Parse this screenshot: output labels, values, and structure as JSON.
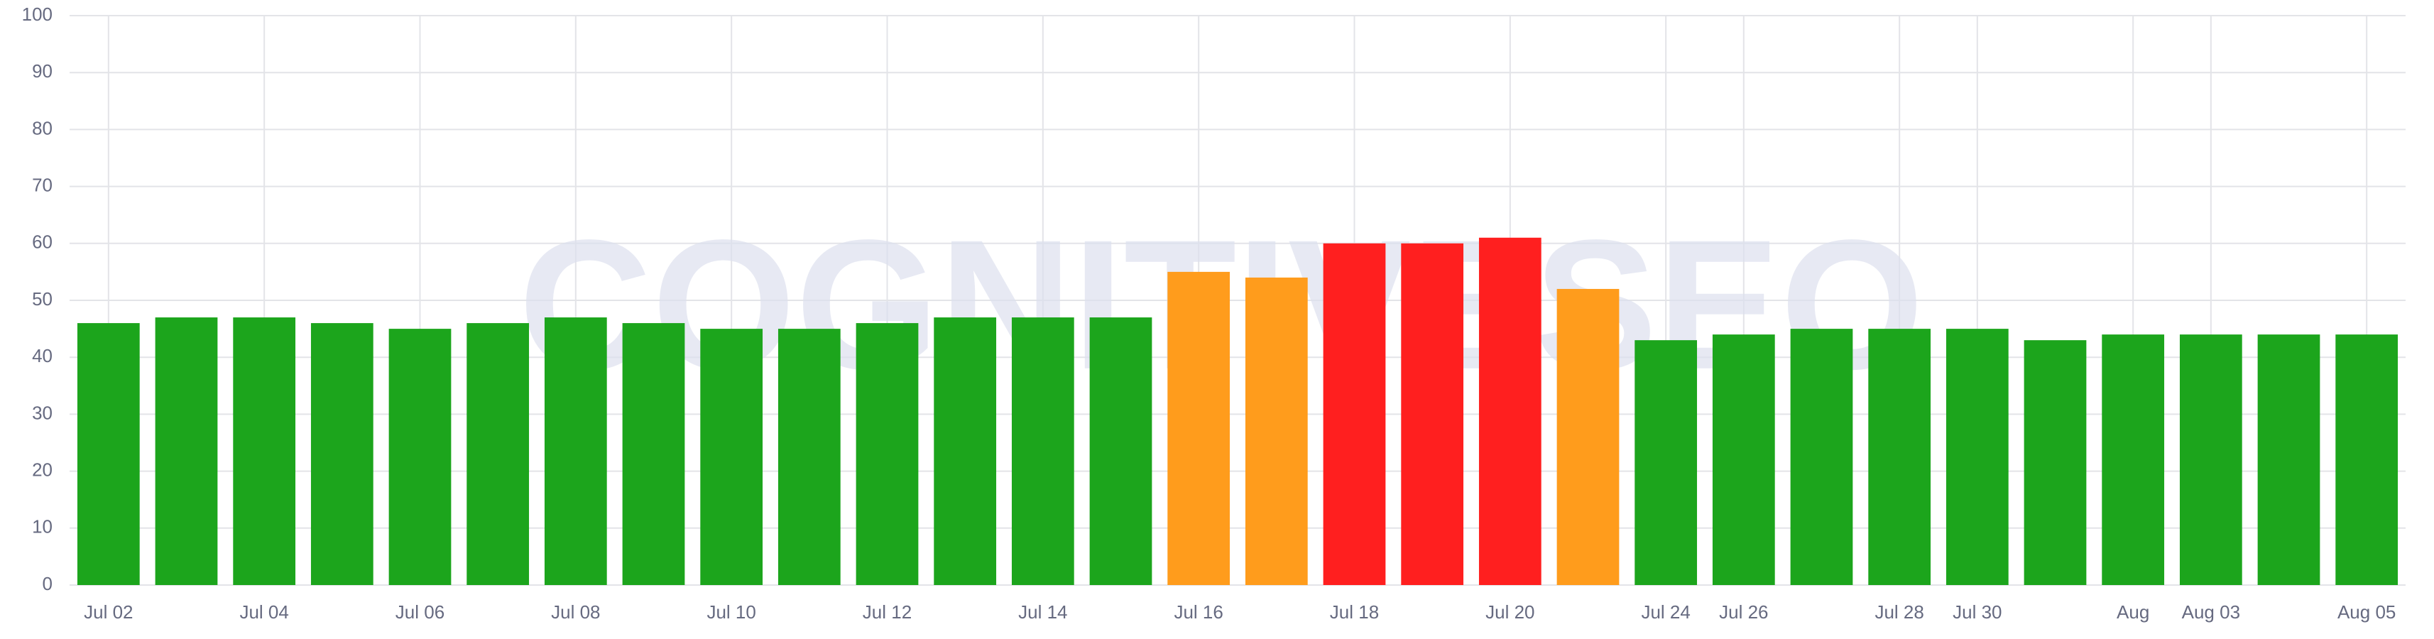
{
  "chart_data": {
    "type": "bar",
    "watermark": "COGNITIVESEO",
    "categories": [
      "Jul 02",
      null,
      "Jul 04",
      null,
      "Jul 06",
      null,
      "Jul 08",
      null,
      "Jul 10",
      null,
      "Jul 12",
      null,
      "Jul 14",
      null,
      "Jul 16",
      null,
      "Jul 18",
      null,
      "Jul 20",
      null,
      "Jul 24",
      "Jul 26",
      null,
      "Jul 28",
      "Jul 30",
      null,
      "Aug",
      "Aug 03",
      null,
      "Aug 05"
    ],
    "values": [
      46,
      47,
      47,
      46,
      45,
      46,
      47,
      46,
      45,
      45,
      46,
      47,
      47,
      47,
      55,
      54,
      60,
      60,
      61,
      52,
      43,
      44,
      45,
      45,
      45,
      43,
      44,
      44,
      44,
      44
    ],
    "colors": [
      "#1ca51c",
      "#1ca51c",
      "#1ca51c",
      "#1ca51c",
      "#1ca51c",
      "#1ca51c",
      "#1ca51c",
      "#1ca51c",
      "#1ca51c",
      "#1ca51c",
      "#1ca51c",
      "#1ca51c",
      "#1ca51c",
      "#1ca51c",
      "#ff9c1c",
      "#ff9c1c",
      "#ff1f1f",
      "#ff1f1f",
      "#ff1f1f",
      "#ff9c1c",
      "#1ca51c",
      "#1ca51c",
      "#1ca51c",
      "#1ca51c",
      "#1ca51c",
      "#1ca51c",
      "#1ca51c",
      "#1ca51c",
      "#1ca51c",
      "#1ca51c"
    ],
    "ylim": [
      0,
      100
    ],
    "yticks": [
      0,
      10,
      20,
      30,
      40,
      50,
      60,
      70,
      80,
      90,
      100
    ],
    "grid": true
  }
}
